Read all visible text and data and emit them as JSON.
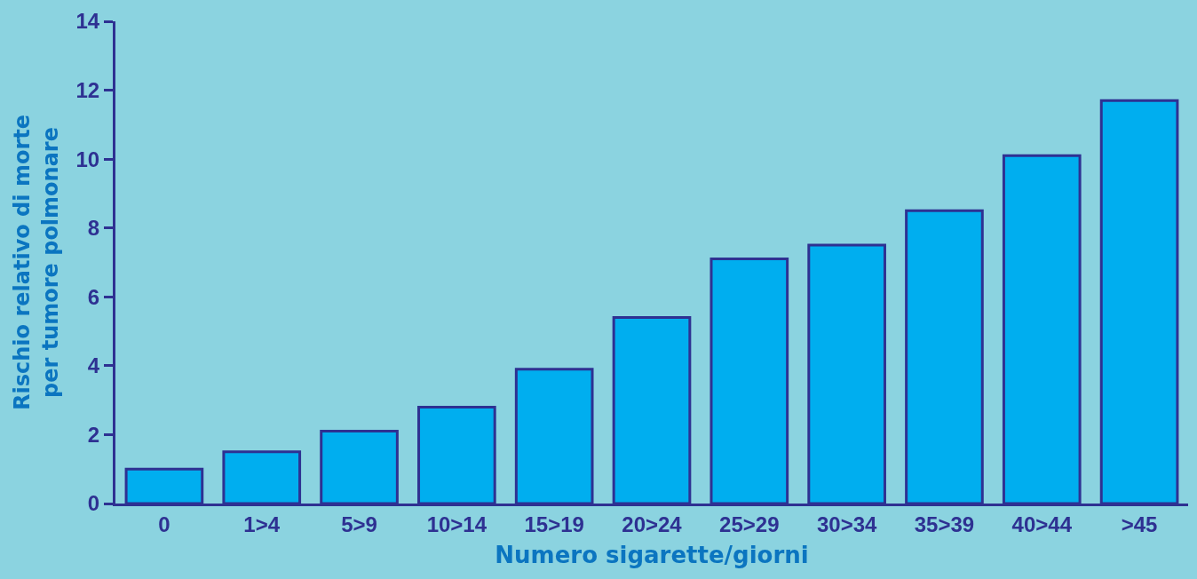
{
  "chart_data": {
    "type": "bar",
    "xlabel": "Numero sigarette/giorni",
    "ylabel": "Rischio relativo di morte\nper tumore polmonare",
    "categories": [
      "0",
      "1>4",
      "5>9",
      "10>14",
      "15>19",
      "20>24",
      "25>29",
      "30>34",
      "35>39",
      "40>44",
      ">45"
    ],
    "values": [
      1.0,
      1.5,
      2.1,
      2.8,
      3.9,
      5.4,
      7.1,
      7.5,
      8.5,
      10.1,
      11.7
    ],
    "color": "#00aeef",
    "ylim": [
      0,
      14
    ],
    "yticks": [
      0,
      2,
      4,
      6,
      8,
      10,
      12,
      14
    ]
  }
}
